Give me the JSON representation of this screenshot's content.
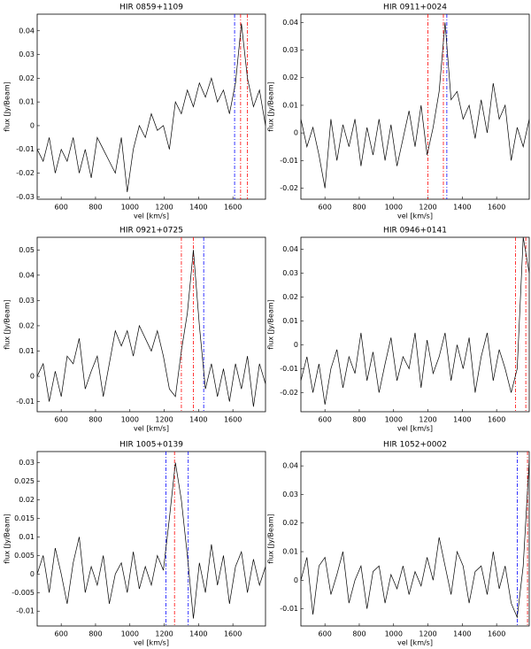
{
  "chart_data": [
    {
      "type": "line",
      "title": "HIR 0859+1109",
      "xlabel": "vel [km/s]",
      "ylabel": "flux [Jy/Beam]",
      "color": "#000000",
      "x": [
        460,
        495,
        530,
        565,
        600,
        635,
        670,
        705,
        740,
        775,
        810,
        845,
        880,
        915,
        950,
        985,
        1020,
        1055,
        1090,
        1125,
        1160,
        1195,
        1230,
        1265,
        1300,
        1335,
        1370,
        1405,
        1440,
        1475,
        1510,
        1545,
        1580,
        1615,
        1650,
        1685,
        1720,
        1755,
        1790
      ],
      "values": [
        -0.01,
        -0.015,
        -0.005,
        -0.02,
        -0.01,
        -0.015,
        -0.005,
        -0.02,
        -0.01,
        -0.022,
        -0.005,
        -0.01,
        -0.015,
        -0.02,
        -0.005,
        -0.028,
        -0.01,
        0,
        -0.005,
        0.005,
        -0.002,
        0,
        -0.01,
        0.01,
        0.005,
        0.015,
        0.008,
        0.018,
        0.012,
        0.02,
        0.01,
        0.015,
        0.005,
        0.018,
        0.043,
        0.02,
        0.008,
        0.015,
        0
      ],
      "vlines": [
        {
          "x": 1610,
          "color": "#0000ff"
        },
        {
          "x": 1645,
          "color": "#ff0000"
        },
        {
          "x": 1685,
          "color": "#ff0000"
        }
      ],
      "xlim": [
        460,
        1790
      ],
      "xticks": [
        600,
        800,
        1000,
        1200,
        1400,
        1600
      ],
      "ylim": [
        -0.031,
        0.047
      ],
      "yticks": [
        -0.03,
        -0.02,
        -0.01,
        0,
        0.01,
        0.02,
        0.03,
        0.04
      ]
    },
    {
      "type": "line",
      "title": "HIR 0911+0024",
      "xlabel": "vel [km/s]",
      "ylabel": "flux [Jy/Beam]",
      "color": "#000000",
      "x": [
        460,
        495,
        530,
        565,
        600,
        635,
        670,
        705,
        740,
        775,
        810,
        845,
        880,
        915,
        950,
        985,
        1020,
        1055,
        1090,
        1125,
        1160,
        1195,
        1230,
        1265,
        1300,
        1335,
        1370,
        1405,
        1440,
        1475,
        1510,
        1545,
        1580,
        1615,
        1650,
        1685,
        1720,
        1755,
        1790
      ],
      "values": [
        0.005,
        -0.005,
        0.002,
        -0.008,
        -0.02,
        0.005,
        -0.01,
        0.003,
        -0.005,
        0.005,
        -0.012,
        0.002,
        -0.008,
        0.005,
        -0.01,
        0.003,
        -0.012,
        -0.002,
        0.008,
        -0.005,
        0.01,
        -0.008,
        0.002,
        0.015,
        0.04,
        0.012,
        0.015,
        0.005,
        0.01,
        -0.002,
        0.012,
        0,
        0.018,
        0.005,
        0.01,
        -0.01,
        0.002,
        -0.005,
        0.005
      ],
      "vlines": [
        {
          "x": 1200,
          "color": "#ff0000"
        },
        {
          "x": 1290,
          "color": "#ff0000"
        },
        {
          "x": 1310,
          "color": "#0000ff"
        }
      ],
      "xlim": [
        460,
        1790
      ],
      "xticks": [
        600,
        800,
        1000,
        1200,
        1400,
        1600
      ],
      "ylim": [
        -0.024,
        0.043
      ],
      "yticks": [
        -0.02,
        -0.01,
        0,
        0.01,
        0.02,
        0.03,
        0.04
      ]
    },
    {
      "type": "line",
      "title": "HIR 0921+0725",
      "xlabel": "vel [km/s]",
      "ylabel": "flux [Jy/Beam]",
      "color": "#000000",
      "x": [
        460,
        495,
        530,
        565,
        600,
        635,
        670,
        705,
        740,
        775,
        810,
        845,
        880,
        915,
        950,
        985,
        1020,
        1055,
        1090,
        1125,
        1160,
        1195,
        1230,
        1265,
        1300,
        1335,
        1370,
        1405,
        1440,
        1475,
        1510,
        1545,
        1580,
        1615,
        1650,
        1685,
        1720,
        1755,
        1790
      ],
      "values": [
        0,
        0.005,
        -0.01,
        0.002,
        -0.008,
        0.008,
        0.005,
        0.015,
        -0.005,
        0.002,
        0.008,
        -0.008,
        0.005,
        0.018,
        0.012,
        0.018,
        0.008,
        0.02,
        0.015,
        0.01,
        0.018,
        0.008,
        -0.005,
        -0.008,
        0.01,
        0.025,
        0.05,
        0.02,
        -0.005,
        0.005,
        -0.008,
        0.003,
        -0.01,
        0.005,
        -0.005,
        0.008,
        -0.012,
        0.005,
        -0.003
      ],
      "vlines": [
        {
          "x": 1300,
          "color": "#ff0000"
        },
        {
          "x": 1370,
          "color": "#ff0000"
        },
        {
          "x": 1430,
          "color": "#0000ff"
        }
      ],
      "xlim": [
        460,
        1790
      ],
      "xticks": [
        600,
        800,
        1000,
        1200,
        1400,
        1600
      ],
      "ylim": [
        -0.014,
        0.055
      ],
      "yticks": [
        -0.01,
        0,
        0.01,
        0.02,
        0.03,
        0.04,
        0.05
      ]
    },
    {
      "type": "line",
      "title": "HIR 0946+0141",
      "xlabel": "vel [km/s]",
      "ylabel": "flux [Jy/Beam]",
      "color": "#000000",
      "x": [
        460,
        495,
        530,
        565,
        600,
        635,
        670,
        705,
        740,
        775,
        810,
        845,
        880,
        915,
        950,
        985,
        1020,
        1055,
        1090,
        1125,
        1160,
        1195,
        1230,
        1265,
        1300,
        1335,
        1370,
        1405,
        1440,
        1475,
        1510,
        1545,
        1580,
        1615,
        1650,
        1685,
        1720,
        1755,
        1790
      ],
      "values": [
        -0.015,
        -0.005,
        -0.02,
        -0.008,
        -0.025,
        -0.01,
        -0.002,
        -0.018,
        -0.005,
        -0.012,
        0.005,
        -0.015,
        -0.003,
        -0.02,
        -0.008,
        0.003,
        -0.015,
        -0.005,
        -0.01,
        0.005,
        -0.018,
        0.002,
        -0.012,
        -0.005,
        0.005,
        -0.015,
        0,
        -0.01,
        0.003,
        -0.02,
        -0.005,
        0.005,
        -0.015,
        -0.002,
        -0.01,
        -0.02,
        -0.01,
        0.045,
        0.03
      ],
      "vlines": [
        {
          "x": 1710,
          "color": "#ff0000"
        },
        {
          "x": 1770,
          "color": "#ff0000"
        }
      ],
      "xlim": [
        460,
        1790
      ],
      "xticks": [
        600,
        800,
        1000,
        1200,
        1400,
        1600
      ],
      "ylim": [
        -0.028,
        0.045
      ],
      "yticks": [
        -0.02,
        -0.01,
        0,
        0.01,
        0.02,
        0.03,
        0.04
      ]
    },
    {
      "type": "line",
      "title": "HIR 1005+0139",
      "xlabel": "vel [km/s]",
      "ylabel": "flux [Jy/Beam]",
      "color": "#000000",
      "x": [
        460,
        495,
        530,
        565,
        600,
        635,
        670,
        705,
        740,
        775,
        810,
        845,
        880,
        915,
        950,
        985,
        1020,
        1055,
        1090,
        1125,
        1160,
        1195,
        1230,
        1265,
        1300,
        1335,
        1370,
        1405,
        1440,
        1475,
        1510,
        1545,
        1580,
        1615,
        1650,
        1685,
        1720,
        1755,
        1790
      ],
      "values": [
        0,
        0.005,
        -0.005,
        0.007,
        0,
        -0.008,
        0.003,
        0.01,
        -0.005,
        0.002,
        -0.003,
        0.005,
        -0.008,
        0,
        0.003,
        -0.005,
        0.006,
        -0.004,
        0.002,
        -0.003,
        0.005,
        0.001,
        0.015,
        0.03,
        0.02,
        0.005,
        -0.012,
        0.003,
        -0.005,
        0.008,
        -0.003,
        0.005,
        -0.008,
        0.002,
        0.006,
        -0.005,
        0.004,
        -0.003,
        0.002
      ],
      "vlines": [
        {
          "x": 1210,
          "color": "#0000ff"
        },
        {
          "x": 1260,
          "color": "#ff0000"
        },
        {
          "x": 1340,
          "color": "#0000ff"
        }
      ],
      "xlim": [
        460,
        1790
      ],
      "xticks": [
        600,
        800,
        1000,
        1200,
        1400,
        1600
      ],
      "ylim": [
        -0.014,
        0.033
      ],
      "yticks": [
        -0.01,
        -0.005,
        0,
        0.005,
        0.01,
        0.015,
        0.02,
        0.025,
        0.03
      ]
    },
    {
      "type": "line",
      "title": "HIR 1052+0002",
      "xlabel": "vel [km/s]",
      "ylabel": "flux [Jy/Beam]",
      "color": "#000000",
      "x": [
        460,
        495,
        530,
        565,
        600,
        635,
        670,
        705,
        740,
        775,
        810,
        845,
        880,
        915,
        950,
        985,
        1020,
        1055,
        1090,
        1125,
        1160,
        1195,
        1230,
        1265,
        1300,
        1335,
        1370,
        1405,
        1440,
        1475,
        1510,
        1545,
        1580,
        1615,
        1650,
        1685,
        1720,
        1755,
        1790
      ],
      "values": [
        0,
        0.008,
        -0.012,
        0.005,
        0.008,
        -0.005,
        0.002,
        0.01,
        -0.008,
        0,
        0.005,
        -0.01,
        0.003,
        0.005,
        -0.008,
        0.002,
        -0.003,
        0.005,
        -0.005,
        0.003,
        -0.002,
        0.008,
        0,
        0.015,
        0.005,
        -0.005,
        0.01,
        0.005,
        -0.008,
        0.003,
        0.005,
        -0.005,
        0.01,
        -0.003,
        0.005,
        -0.008,
        -0.013,
        0.005,
        0.042
      ],
      "vlines": [
        {
          "x": 1720,
          "color": "#0000ff"
        },
        {
          "x": 1780,
          "color": "#ff0000"
        }
      ],
      "xlim": [
        460,
        1790
      ],
      "xticks": [
        600,
        800,
        1000,
        1200,
        1400,
        1600
      ],
      "ylim": [
        -0.016,
        0.045
      ],
      "yticks": [
        -0.01,
        0,
        0.01,
        0.02,
        0.03,
        0.04
      ]
    }
  ]
}
